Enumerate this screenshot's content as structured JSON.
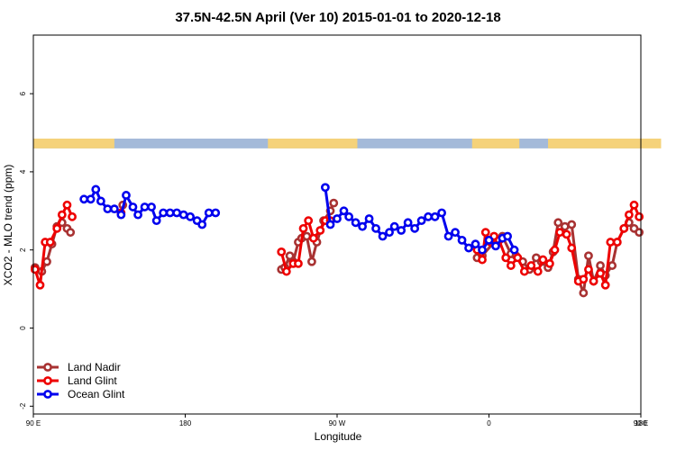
{
  "chart_data": {
    "type": "line",
    "title": "37.5N-42.5N April (Ver 10)   2015-01-01 to 2020-12-18",
    "xlabel": "Longitude",
    "ylabel": "XCO2 - MLO trend (ppm)",
    "xlim": [
      90,
      450
    ],
    "ylim": [
      -2.2,
      7.5
    ],
    "x_ticks": [
      {
        "value": 90,
        "label": "90 E"
      },
      {
        "value": 180,
        "label": "180"
      },
      {
        "value": 270,
        "label": "90 W"
      },
      {
        "value": 360,
        "label": "0"
      },
      {
        "value": 450,
        "label": "90 E"
      },
      {
        "value": 540,
        "label": "180"
      }
    ],
    "y_ticks": [
      {
        "value": -2,
        "label": "-2"
      },
      {
        "value": 0,
        "label": "0"
      },
      {
        "value": 2,
        "label": "2"
      },
      {
        "value": 4,
        "label": "4"
      },
      {
        "value": 6,
        "label": "6"
      }
    ],
    "legend_position": "bottom-left",
    "grid": false,
    "map_strip": {
      "y_range": [
        4.6,
        4.85
      ],
      "ocean_color": "#a4bad9",
      "land_color": "#f5d27a",
      "land_x_ranges": [
        [
          90,
          138
        ],
        [
          229,
          282
        ],
        [
          350,
          378
        ],
        [
          395,
          462
        ],
        [
          499,
          553
        ]
      ]
    },
    "series": [
      {
        "name": "Land Nadir",
        "color": "#a83232",
        "points": [
          [
            91,
            1.55
          ],
          [
            95,
            1.45
          ],
          [
            98,
            1.7
          ],
          [
            101,
            2.15
          ],
          [
            104,
            2.6
          ],
          [
            107,
            2.7
          ],
          [
            110,
            2.55
          ],
          [
            112,
            2.45
          ],
          [
            143,
            3.15
          ],
          [
            237,
            1.5
          ],
          [
            239,
            1.55
          ],
          [
            242,
            1.85
          ],
          [
            244,
            1.7
          ],
          [
            247,
            2.2
          ],
          [
            249,
            2.3
          ],
          [
            252,
            2.35
          ],
          [
            255,
            1.7
          ],
          [
            258,
            2.2
          ],
          [
            262,
            2.75
          ],
          [
            266,
            3.0
          ],
          [
            268,
            3.2
          ],
          [
            353,
            1.8
          ],
          [
            356,
            1.85
          ],
          [
            363,
            2.2
          ],
          [
            368,
            2.35
          ],
          [
            373,
            1.9
          ],
          [
            376,
            1.85
          ],
          [
            380,
            1.7
          ],
          [
            384,
            1.5
          ],
          [
            388,
            1.8
          ],
          [
            391,
            1.7
          ],
          [
            395,
            1.55
          ],
          [
            398,
            1.95
          ],
          [
            401,
            2.7
          ],
          [
            405,
            2.6
          ],
          [
            409,
            2.65
          ],
          [
            413,
            1.25
          ],
          [
            416,
            0.9
          ],
          [
            419,
            1.85
          ],
          [
            422,
            1.2
          ],
          [
            426,
            1.6
          ],
          [
            429,
            1.35
          ],
          [
            433,
            1.6
          ],
          [
            436,
            2.2
          ],
          [
            440,
            2.55
          ],
          [
            443,
            2.7
          ],
          [
            446,
            2.55
          ],
          [
            449,
            2.45
          ]
        ]
      },
      {
        "name": "Land Glint",
        "color": "#ee0000",
        "points": [
          [
            91,
            1.5
          ],
          [
            94,
            1.1
          ],
          [
            97,
            2.2
          ],
          [
            100,
            2.2
          ],
          [
            104,
            2.55
          ],
          [
            107,
            2.9
          ],
          [
            110,
            3.15
          ],
          [
            113,
            2.85
          ],
          [
            142,
            2.95
          ],
          [
            237,
            1.95
          ],
          [
            240,
            1.45
          ],
          [
            244,
            1.65
          ],
          [
            247,
            1.65
          ],
          [
            250,
            2.55
          ],
          [
            253,
            2.75
          ],
          [
            256,
            2.3
          ],
          [
            260,
            2.5
          ],
          [
            263,
            2.75
          ],
          [
            266,
            2.75
          ],
          [
            353,
            2.0
          ],
          [
            356,
            1.75
          ],
          [
            358,
            2.45
          ],
          [
            361,
            2.2
          ],
          [
            363,
            2.35
          ],
          [
            366,
            2.25
          ],
          [
            370,
            1.8
          ],
          [
            373,
            1.6
          ],
          [
            377,
            1.8
          ],
          [
            381,
            1.45
          ],
          [
            385,
            1.6
          ],
          [
            389,
            1.45
          ],
          [
            392,
            1.75
          ],
          [
            396,
            1.65
          ],
          [
            399,
            2.0
          ],
          [
            402,
            2.45
          ],
          [
            406,
            2.4
          ],
          [
            409,
            2.05
          ],
          [
            413,
            1.2
          ],
          [
            416,
            1.25
          ],
          [
            419,
            1.5
          ],
          [
            422,
            1.2
          ],
          [
            426,
            1.4
          ],
          [
            429,
            1.1
          ],
          [
            432,
            2.2
          ],
          [
            436,
            2.2
          ],
          [
            440,
            2.55
          ],
          [
            443,
            2.9
          ],
          [
            446,
            3.15
          ],
          [
            449,
            2.85
          ]
        ]
      },
      {
        "name": "Ocean Glint",
        "color": "#0000ee",
        "points": [
          [
            120,
            3.3
          ],
          [
            124,
            3.3
          ],
          [
            127,
            3.55
          ],
          [
            130,
            3.25
          ],
          [
            134,
            3.05
          ],
          [
            138,
            3.05
          ],
          [
            142,
            2.9
          ],
          [
            145,
            3.4
          ],
          [
            149,
            3.1
          ],
          [
            152,
            2.9
          ],
          [
            156,
            3.1
          ],
          [
            160,
            3.1
          ],
          [
            163,
            2.75
          ],
          [
            167,
            2.95
          ],
          [
            171,
            2.95
          ],
          [
            175,
            2.95
          ],
          [
            179,
            2.9
          ],
          [
            183,
            2.85
          ],
          [
            187,
            2.75
          ],
          [
            190,
            2.65
          ],
          [
            194,
            2.95
          ],
          [
            198,
            2.95
          ],
          [
            263,
            3.6
          ],
          [
            266,
            2.65
          ],
          [
            270,
            2.8
          ],
          [
            274,
            3.0
          ],
          [
            277,
            2.85
          ],
          [
            281,
            2.7
          ],
          [
            285,
            2.6
          ],
          [
            289,
            2.8
          ],
          [
            293,
            2.55
          ],
          [
            297,
            2.35
          ],
          [
            301,
            2.45
          ],
          [
            304,
            2.6
          ],
          [
            308,
            2.5
          ],
          [
            312,
            2.7
          ],
          [
            316,
            2.55
          ],
          [
            320,
            2.75
          ],
          [
            324,
            2.85
          ],
          [
            328,
            2.85
          ],
          [
            332,
            2.95
          ],
          [
            336,
            2.35
          ],
          [
            340,
            2.45
          ],
          [
            344,
            2.25
          ],
          [
            348,
            2.05
          ],
          [
            352,
            2.15
          ],
          [
            356,
            2.0
          ],
          [
            360,
            2.25
          ],
          [
            364,
            2.1
          ],
          [
            368,
            2.3
          ],
          [
            371,
            2.35
          ],
          [
            375,
            2.0
          ]
        ],
        "connected_segments": [
          [
            120,
            124,
            127,
            130,
            134,
            138,
            142,
            145,
            149,
            152,
            156,
            160,
            163,
            167,
            171,
            175,
            179,
            183,
            187,
            190,
            194,
            198
          ],
          [
            263,
            266,
            270,
            274,
            277,
            281,
            285,
            289,
            293,
            297,
            301,
            304,
            308,
            312,
            316,
            320,
            324,
            328,
            332,
            336,
            340,
            344,
            348,
            352,
            356,
            360,
            364,
            368,
            371,
            375
          ]
        ]
      }
    ]
  }
}
